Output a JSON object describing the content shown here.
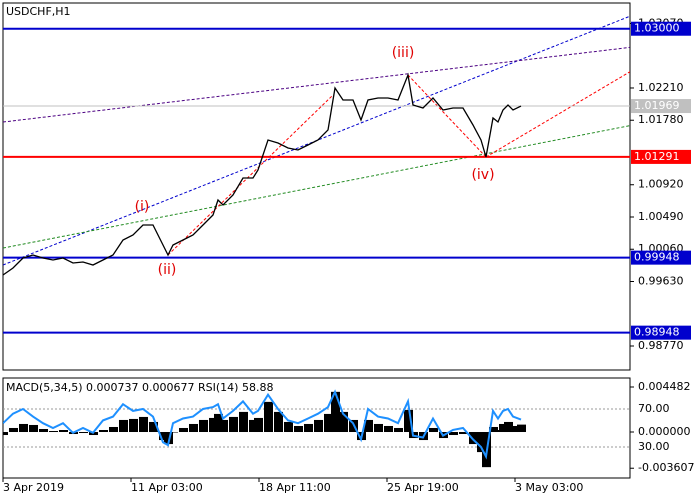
{
  "chart_data": {
    "type": "line",
    "title": "USDCHF,H1",
    "x": [
      0,
      10,
      20,
      30,
      40,
      50,
      60,
      70,
      80,
      90,
      100,
      110,
      120,
      130,
      140,
      150,
      160,
      165,
      170,
      180,
      190,
      200,
      210,
      215,
      220,
      230,
      240,
      250,
      255,
      265,
      275,
      285,
      295,
      305,
      315,
      325,
      332,
      340,
      350,
      358,
      365,
      375,
      385,
      395,
      405,
      410,
      420,
      430,
      440,
      450,
      460,
      470,
      478,
      483,
      490,
      495,
      500,
      505,
      510,
      518
    ],
    "series": [
      {
        "name": "USDCHF",
        "color": "#000000",
        "values": [
          0.99716,
          0.9981,
          0.99943,
          0.99983,
          0.99943,
          0.99916,
          0.99943,
          0.99876,
          0.9989,
          0.9985,
          0.99916,
          0.99983,
          1.00183,
          1.0025,
          1.00383,
          1.00383,
          1.00116,
          0.99983,
          1.00116,
          1.00183,
          1.0025,
          1.00383,
          1.00516,
          1.00716,
          1.0065,
          1.00783,
          1.0101,
          1.0101,
          1.01116,
          1.01516,
          1.01476,
          1.0141,
          1.01383,
          1.0145,
          1.01516,
          1.0165,
          1.0221,
          1.0205,
          1.0205,
          1.01783,
          1.0205,
          1.02076,
          1.02076,
          1.0205,
          1.02383,
          1.01983,
          1.01943,
          1.02076,
          1.01916,
          1.01943,
          1.01943,
          1.01716,
          1.01516,
          1.0129,
          1.0181,
          1.01756,
          1.01916,
          1.01983,
          1.01916,
          1.01969
        ]
      }
    ],
    "xlim": [
      0,
      627
    ],
    "xticks": [
      {
        "value": 0,
        "label": "3 Apr 2019"
      },
      {
        "value": 128,
        "label": "11 Apr 03:00"
      },
      {
        "value": 256,
        "label": "18 Apr 11:00"
      },
      {
        "value": 384,
        "label": "25 Apr 19:00"
      },
      {
        "value": 512,
        "label": "3 May 03:00"
      }
    ],
    "ylim": [
      0.9845,
      1.03383
    ],
    "yticks": [
      {
        "value": 1.0307,
        "label": "1.03070"
      },
      {
        "value": 1.0221,
        "label": "1.02210"
      },
      {
        "value": 1.0178,
        "label": "1.01780"
      },
      {
        "value": 1.0092,
        "label": "1.00920"
      },
      {
        "value": 1.0049,
        "label": "1.00490"
      },
      {
        "value": 1.0006,
        "label": "1.00060"
      },
      {
        "value": 0.9963,
        "label": "0.99630"
      },
      {
        "value": 0.9877,
        "label": "0.98770"
      }
    ],
    "current_price": {
      "value": 1.01969,
      "label": "1.01969",
      "color": "#c0c0c0"
    },
    "levels": [
      {
        "value": 1.03,
        "label": "1.03000",
        "color": "#0000cd"
      },
      {
        "value": 1.01291,
        "label": "1.01291",
        "color": "#ff0000"
      },
      {
        "value": 0.99948,
        "label": "0.99948",
        "color": "#0000cd"
      },
      {
        "value": 0.98948,
        "label": "0.98948",
        "color": "#0000cd"
      }
    ],
    "trendlines": [
      {
        "x": [
          0,
          630
        ],
        "y": [
          0.9985,
          1.03183
        ],
        "color": "#0000cd"
      },
      {
        "x": [
          0,
          630
        ],
        "y": [
          1.01756,
          1.02756
        ],
        "color": "#4b0082"
      },
      {
        "x": [
          0,
          630
        ],
        "y": [
          1.00076,
          1.01716
        ],
        "color": "#228b22"
      },
      {
        "x": [
          165,
          330
        ],
        "y": [
          0.99983,
          1.02116
        ],
        "color": "#ff0000"
      },
      {
        "x": [
          405,
          483
        ],
        "y": [
          1.02383,
          1.0129
        ],
        "color": "#ff0000"
      },
      {
        "x": [
          483,
          630
        ],
        "y": [
          1.0129,
          1.0245
        ],
        "color": "#ff0000"
      }
    ],
    "annotations": [
      {
        "text": "(i)",
        "x": 139,
        "y": 1.00623
      },
      {
        "text": "(ii)",
        "x": 164,
        "y": 0.99783
      },
      {
        "text": "(iii)",
        "x": 400,
        "y": 1.02676
      },
      {
        "text": "(iv)",
        "x": 480,
        "y": 1.0105
      }
    ],
    "indicator": {
      "label": "MACD(5,34,5) 0.000737 0.000677 RSI(14) 58.88",
      "macd": [
        -0.0003,
        0.0004,
        0.0008,
        0.0007,
        0.0003,
        0.0001,
        0.0002,
        -0.0002,
        -0.0001,
        -0.0003,
        0.0002,
        0.0005,
        0.0012,
        0.0013,
        0.0015,
        0.001,
        -0.0008,
        -0.0012,
        0.0,
        0.0004,
        0.0008,
        0.0012,
        0.0014,
        0.0018,
        0.0012,
        0.0015,
        0.002,
        0.0012,
        0.0014,
        0.003,
        0.002,
        0.001,
        0.0006,
        0.0008,
        0.0012,
        0.0018,
        0.004,
        0.002,
        0.0012,
        -0.0008,
        0.0012,
        0.0008,
        0.0006,
        0.0004,
        0.0022,
        -0.0006,
        -0.0008,
        0.0004,
        -0.0006,
        -0.0003,
        -0.0002,
        -0.0012,
        -0.002,
        -0.0035,
        0.0005,
        0.0002,
        0.0008,
        0.001,
        0.0006,
        0.000737
      ],
      "rsi": [
        55,
        65,
        70,
        62,
        55,
        50,
        55,
        45,
        50,
        45,
        58,
        62,
        75,
        68,
        70,
        62,
        35,
        32,
        55,
        60,
        62,
        70,
        72,
        75,
        60,
        68,
        78,
        65,
        68,
        85,
        70,
        58,
        55,
        60,
        65,
        72,
        88,
        65,
        55,
        38,
        70,
        62,
        60,
        55,
        78,
        42,
        40,
        60,
        42,
        48,
        50,
        38,
        30,
        20,
        68,
        60,
        68,
        70,
        62,
        58.88
      ],
      "macd_color": "#000000",
      "rsi_color": "#1e90ff",
      "macd_lim": [
        -0.00458,
        0.005378
      ],
      "macd_ticks": [
        {
          "value": 0.004482,
          "label": "0.004482"
        },
        {
          "value": 0,
          "label": "0.000000"
        },
        {
          "value": -0.003607,
          "label": "-0.003607"
        }
      ],
      "rsi_lim": [
        -2.6,
        102.6
      ],
      "rsi_ticks": [
        {
          "value": 70,
          "label": "70.00"
        },
        {
          "value": 30,
          "label": "30.00"
        }
      ]
    }
  }
}
